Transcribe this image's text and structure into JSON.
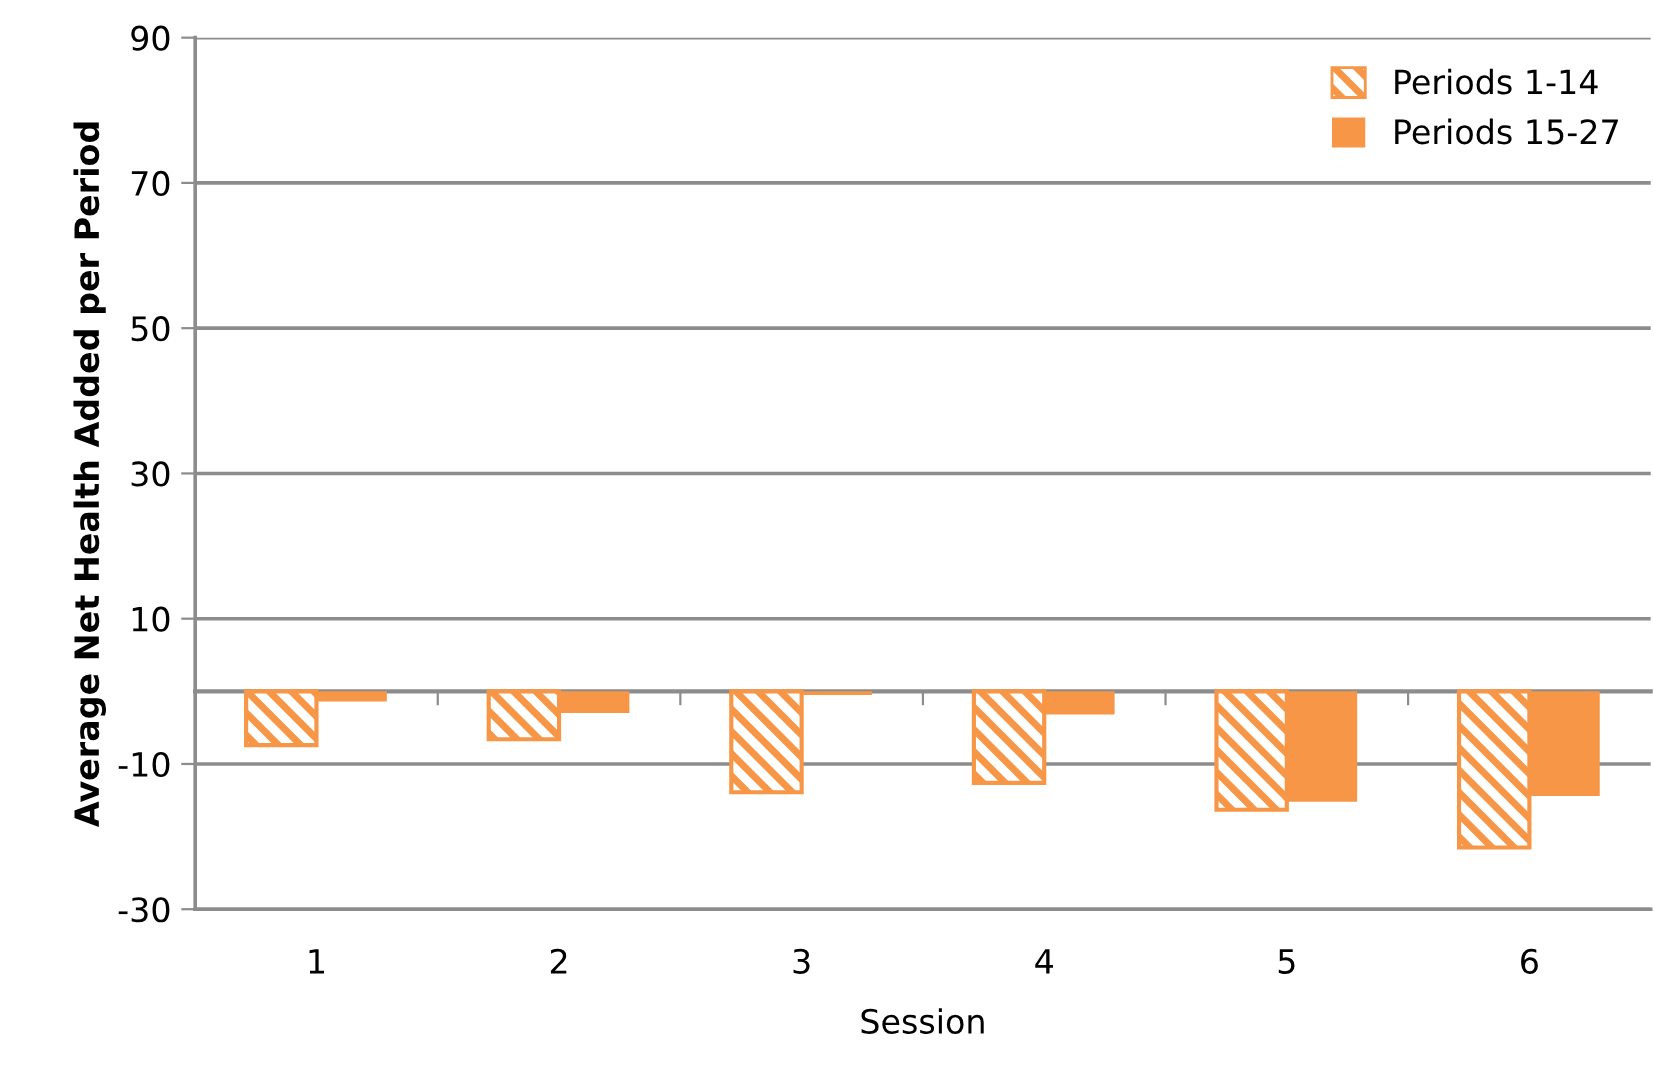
{
  "chart_data": {
    "type": "bar",
    "xlabel": "Session",
    "ylabel": "Average Net Health Added per Period",
    "categories": [
      "1",
      "2",
      "3",
      "4",
      "5",
      "6"
    ],
    "series": [
      {
        "name": "Periods 1-14",
        "color": "#f79646",
        "values": [
          -7.4,
          -6.6,
          -13.9,
          -12.6,
          -16.3,
          -21.5
        ]
      },
      {
        "name": "Periods 15-27",
        "color": "#f79646",
        "values": [
          -1.4,
          -3.0,
          -0.5,
          -3.2,
          -15.2,
          -14.4
        ]
      }
    ],
    "ylim": [
      -30,
      90
    ],
    "yticks": [
      -30,
      -10,
      10,
      30,
      50,
      70,
      90
    ],
    "grid": "y",
    "legend": "top right"
  }
}
